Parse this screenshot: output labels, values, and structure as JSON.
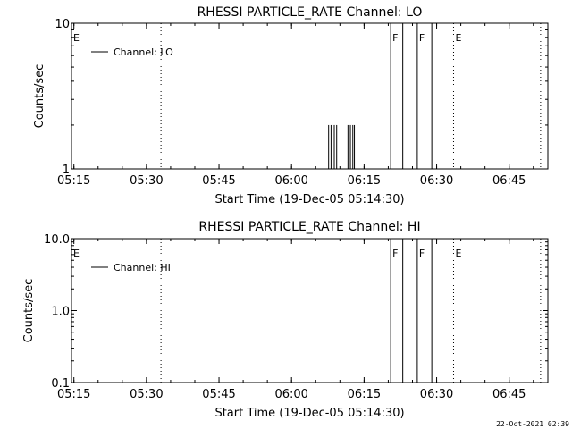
{
  "footer_timestamp": "22-Oct-2021 02:39",
  "chart_data": [
    {
      "type": "line",
      "title": "RHESSI PARTICLE_RATE Channel: LO",
      "xlabel": "Start Time (19-Dec-05 05:14:30)",
      "ylabel": "Counts/sec",
      "yscale": "log",
      "ylim": [
        1,
        10
      ],
      "xlim": [
        "05:14:30",
        "06:53:00"
      ],
      "x_ticks": [
        "05:15",
        "05:30",
        "05:45",
        "06:00",
        "06:15",
        "06:30",
        "06:45"
      ],
      "y_ticks": [
        "1",
        "10"
      ],
      "legend": {
        "placement": "top-left",
        "entries": [
          "Channel: LO"
        ]
      },
      "series": [
        {
          "name": "Channel: LO",
          "points": [
            {
              "t": "06:07:40",
              "v": 2
            },
            {
              "t": "06:08:10",
              "v": 2
            },
            {
              "t": "06:08:50",
              "v": 2
            },
            {
              "t": "06:09:20",
              "v": 2
            },
            {
              "t": "06:11:40",
              "v": 2
            },
            {
              "t": "06:12:10",
              "v": 2
            },
            {
              "t": "06:12:40",
              "v": 2
            },
            {
              "t": "06:13:00",
              "v": 2
            }
          ]
        }
      ],
      "markers": [
        {
          "time": "05:14:30",
          "label": "E",
          "style": "dotted"
        },
        {
          "time": "05:33:00",
          "label": "",
          "style": "dotted"
        },
        {
          "time": "06:20:30",
          "label": "F",
          "style": "solid"
        },
        {
          "time": "06:23:00",
          "label": "",
          "style": "solid"
        },
        {
          "time": "06:26:00",
          "label": "F",
          "style": "solid"
        },
        {
          "time": "06:29:00",
          "label": "",
          "style": "solid"
        },
        {
          "time": "06:33:30",
          "label": "E",
          "style": "dotted"
        },
        {
          "time": "06:51:30",
          "label": "",
          "style": "dotted"
        }
      ]
    },
    {
      "type": "line",
      "title": "RHESSI PARTICLE_RATE Channel: HI",
      "xlabel": "Start Time (19-Dec-05 05:14:30)",
      "ylabel": "Counts/sec",
      "yscale": "log",
      "ylim": [
        0.1,
        10
      ],
      "xlim": [
        "05:14:30",
        "06:53:00"
      ],
      "x_ticks": [
        "05:15",
        "05:30",
        "05:45",
        "06:00",
        "06:15",
        "06:30",
        "06:45"
      ],
      "y_ticks": [
        "0.1",
        "1.0",
        "10.0"
      ],
      "legend": {
        "placement": "top-left",
        "entries": [
          "Channel: HI"
        ]
      },
      "series": [
        {
          "name": "Channel: HI",
          "points": []
        }
      ],
      "markers": [
        {
          "time": "05:14:30",
          "label": "E",
          "style": "dotted"
        },
        {
          "time": "05:33:00",
          "label": "",
          "style": "dotted"
        },
        {
          "time": "06:20:30",
          "label": "F",
          "style": "solid"
        },
        {
          "time": "06:23:00",
          "label": "",
          "style": "solid"
        },
        {
          "time": "06:26:00",
          "label": "F",
          "style": "solid"
        },
        {
          "time": "06:29:00",
          "label": "",
          "style": "solid"
        },
        {
          "time": "06:33:30",
          "label": "E",
          "style": "dotted"
        },
        {
          "time": "06:51:30",
          "label": "",
          "style": "dotted"
        }
      ]
    }
  ]
}
